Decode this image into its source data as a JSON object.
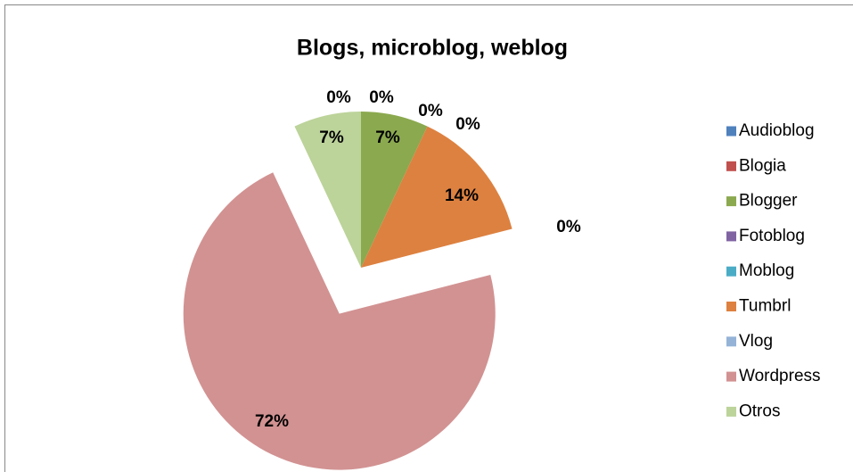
{
  "chart_data": {
    "type": "pie",
    "title": "Blogs, microblog, weblog",
    "categories": [
      "Audioblog",
      "Blogia",
      "Blogger",
      "Fotoblog",
      "Moblog",
      "Tumbrl",
      "Vlog",
      "Wordpress",
      "Otros"
    ],
    "values": [
      0,
      0,
      7,
      0,
      0,
      14,
      0,
      72,
      7
    ],
    "colors": [
      "#4f81bd",
      "#c0504d",
      "#8ba94f",
      "#8064a2",
      "#4bacc6",
      "#dd8140",
      "#95b3d7",
      "#d29292",
      "#bcd39a"
    ],
    "legend": "right"
  }
}
